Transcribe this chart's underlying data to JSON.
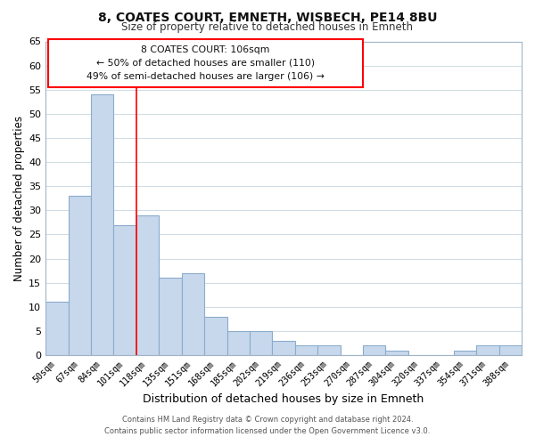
{
  "title": "8, COATES COURT, EMNETH, WISBECH, PE14 8BU",
  "subtitle": "Size of property relative to detached houses in Emneth",
  "xlabel": "Distribution of detached houses by size in Emneth",
  "ylabel": "Number of detached properties",
  "footer_line1": "Contains HM Land Registry data © Crown copyright and database right 2024.",
  "footer_line2": "Contains public sector information licensed under the Open Government Licence v3.0.",
  "bar_labels": [
    "50sqm",
    "67sqm",
    "84sqm",
    "101sqm",
    "118sqm",
    "135sqm",
    "151sqm",
    "168sqm",
    "185sqm",
    "202sqm",
    "219sqm",
    "236sqm",
    "253sqm",
    "270sqm",
    "287sqm",
    "304sqm",
    "320sqm",
    "337sqm",
    "354sqm",
    "371sqm",
    "388sqm"
  ],
  "bar_values": [
    11,
    33,
    54,
    27,
    29,
    16,
    17,
    8,
    5,
    5,
    3,
    2,
    2,
    0,
    2,
    1,
    0,
    0,
    1,
    2,
    2
  ],
  "bar_color": "#c8d8ec",
  "bar_edge_color": "#8aaccc",
  "ylim": [
    0,
    65
  ],
  "yticks": [
    0,
    5,
    10,
    15,
    20,
    25,
    30,
    35,
    40,
    45,
    50,
    55,
    60,
    65
  ],
  "red_line_x": 3.5,
  "ann_line1": "8 COATES COURT: 106sqm",
  "ann_line2": "← 50% of detached houses are smaller (110)",
  "ann_line3": "49% of semi-detached houses are larger (106) →",
  "background_color": "#ffffff",
  "grid_color": "#c8d4de"
}
